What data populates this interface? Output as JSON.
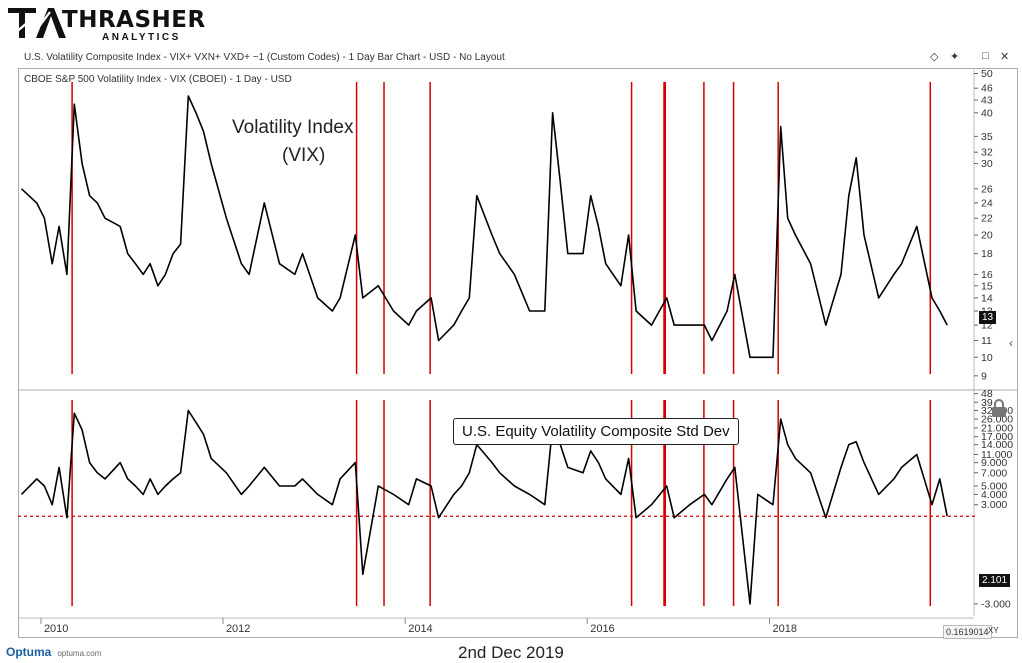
{
  "brand": {
    "name": "THRASHER",
    "sub": "ANALYTICS"
  },
  "window": {
    "title": "U.S. Volatility Composite Index - VIX+ VXN+ VXD+ ~1 (Custom Codes) - 1 Day Bar Chart - USD - No Layout",
    "icons": [
      "diamond-icon",
      "pin-icon",
      "maximize-icon",
      "close-icon"
    ]
  },
  "footer": {
    "logo": "Optuma",
    "url": "optuma.com",
    "date": "2nd Dec 2019",
    "zoom_value": "0.1619014",
    "zoom_label": "XY"
  },
  "colors": {
    "series": "#000000",
    "signal_lines": "#d40000",
    "threshold": "#d40000"
  },
  "chart_data": [
    {
      "type": "line",
      "title": "CBOE S&P 500 Volatility Index - VIX (CBOEI) - 1 Day - USD",
      "annotation": [
        "Volatility Index",
        "(VIX)"
      ],
      "yscale": "log",
      "ylim": [
        8.4,
        51
      ],
      "y_ticks": [
        50,
        46,
        43,
        40,
        35,
        32,
        30,
        26,
        24,
        22,
        20,
        18,
        16,
        15,
        14,
        13,
        12,
        11,
        10,
        9
      ],
      "last_value": "13",
      "x": [
        "2009-10",
        "2009-12",
        "2010-01",
        "2010-02",
        "2010-03",
        "2010-04",
        "2010-05",
        "2010-06",
        "2010-07",
        "2010-08",
        "2010-09",
        "2010-11",
        "2010-12",
        "2011-01",
        "2011-02",
        "2011-03",
        "2011-04",
        "2011-05",
        "2011-06",
        "2011-07",
        "2011-08",
        "2011-09",
        "2011-10",
        "2011-11",
        "2012-01",
        "2012-03",
        "2012-04",
        "2012-06",
        "2012-08",
        "2012-10",
        "2012-11",
        "2013-01",
        "2013-03",
        "2013-04",
        "2013-06",
        "2013-07",
        "2013-09",
        "2013-11",
        "2014-01",
        "2014-02",
        "2014-04",
        "2014-05",
        "2014-07",
        "2014-08",
        "2014-09",
        "2014-10",
        "2014-12",
        "2015-01",
        "2015-03",
        "2015-05",
        "2015-07",
        "2015-08",
        "2015-09",
        "2015-10",
        "2015-12",
        "2016-01",
        "2016-02",
        "2016-03",
        "2016-05",
        "2016-06",
        "2016-07",
        "2016-09",
        "2016-11",
        "2016-12",
        "2017-02",
        "2017-04",
        "2017-05",
        "2017-07",
        "2017-08",
        "2017-10",
        "2017-11",
        "2018-01",
        "2018-02",
        "2018-03",
        "2018-04",
        "2018-06",
        "2018-08",
        "2018-10",
        "2018-11",
        "2018-12",
        "2019-01",
        "2019-03",
        "2019-05",
        "2019-06",
        "2019-08",
        "2019-10",
        "2019-11",
        "2019-12"
      ],
      "values": [
        26,
        24,
        22,
        17,
        21,
        16,
        42,
        30,
        25,
        24,
        22,
        21,
        18,
        17,
        16,
        17,
        15,
        16,
        18,
        19,
        44,
        40,
        36,
        30,
        22,
        17,
        16,
        24,
        17,
        16,
        18,
        14,
        13,
        14,
        20,
        14,
        15,
        13,
        12,
        13,
        14,
        11,
        12,
        13,
        14,
        25,
        20,
        18,
        16,
        13,
        13,
        40,
        27,
        18,
        18,
        25,
        21,
        17,
        15,
        20,
        13,
        12,
        14,
        12,
        12,
        12,
        11,
        13,
        16,
        10,
        10,
        10,
        37,
        22,
        20,
        17,
        12,
        16,
        25,
        31,
        20,
        14,
        16,
        17,
        21,
        14,
        13,
        12
      ]
    },
    {
      "type": "line",
      "title": "U.S. Equity Volatility Composite Std Dev",
      "yscale": "asinh",
      "ylim": [
        -4.2,
        50
      ],
      "y_ticks": [
        48,
        39,
        32,
        26,
        21,
        17,
        14,
        11,
        9,
        7,
        5,
        4,
        3,
        -3
      ],
      "y_tick_labels": [
        "48",
        "39",
        "32.000",
        "26.000",
        "21.000",
        "17.000",
        "14.000",
        "11.000",
        "9.000",
        "7.000",
        "5.000",
        "4.000",
        "3.000",
        "-3.000"
      ],
      "threshold": 2.101,
      "last_value": "2.101",
      "x": [
        "2009-10",
        "2009-12",
        "2010-01",
        "2010-02",
        "2010-03",
        "2010-04",
        "2010-05",
        "2010-06",
        "2010-07",
        "2010-08",
        "2010-09",
        "2010-11",
        "2010-12",
        "2011-01",
        "2011-02",
        "2011-03",
        "2011-04",
        "2011-05",
        "2011-06",
        "2011-07",
        "2011-08",
        "2011-09",
        "2011-10",
        "2011-11",
        "2012-01",
        "2012-03",
        "2012-04",
        "2012-06",
        "2012-08",
        "2012-10",
        "2012-11",
        "2013-01",
        "2013-03",
        "2013-04",
        "2013-06",
        "2013-07",
        "2013-09",
        "2013-11",
        "2014-01",
        "2014-02",
        "2014-04",
        "2014-05",
        "2014-07",
        "2014-08",
        "2014-09",
        "2014-10",
        "2014-12",
        "2015-01",
        "2015-03",
        "2015-05",
        "2015-07",
        "2015-08",
        "2015-09",
        "2015-10",
        "2015-12",
        "2016-01",
        "2016-02",
        "2016-03",
        "2016-05",
        "2016-06",
        "2016-07",
        "2016-09",
        "2016-11",
        "2016-12",
        "2017-02",
        "2017-04",
        "2017-05",
        "2017-07",
        "2017-08",
        "2017-10",
        "2017-11",
        "2018-01",
        "2018-02",
        "2018-03",
        "2018-04",
        "2018-06",
        "2018-08",
        "2018-10",
        "2018-11",
        "2018-12",
        "2019-01",
        "2019-03",
        "2019-05",
        "2019-06",
        "2019-08",
        "2019-10",
        "2019-11",
        "2019-12"
      ],
      "values": [
        4,
        6,
        5,
        3,
        8,
        2,
        30,
        20,
        9,
        7,
        6,
        9,
        6,
        5,
        4,
        6,
        4,
        5,
        6,
        7,
        32,
        24,
        18,
        10,
        7,
        4,
        5,
        8,
        5,
        5,
        6,
        4,
        3,
        6,
        9,
        -1,
        5,
        4,
        3,
        6,
        5,
        2,
        4,
        5,
        7,
        14,
        9,
        7,
        5,
        4,
        3,
        22,
        14,
        8,
        7,
        12,
        9,
        6,
        4,
        10,
        2,
        3,
        5,
        2,
        3,
        4,
        3,
        6,
        8,
        -3,
        4,
        3,
        26,
        14,
        10,
        7,
        2,
        8,
        14,
        15,
        9,
        4,
        6,
        8,
        11,
        3,
        6,
        2.101
      ]
    }
  ],
  "signal_dates": [
    "2010-05-06",
    "2013-06-20",
    "2013-10-08",
    "2014-04-11",
    "2016-06-27",
    "2016-11-04",
    "2016-11-09",
    "2017-04-13",
    "2017-08-10",
    "2018-02-05",
    "2019-10-08"
  ],
  "x_axis": {
    "labels": [
      "2010",
      "2012",
      "2014",
      "2016",
      "2018"
    ],
    "domain": [
      "2009-10-01",
      "2019-12-02"
    ]
  }
}
